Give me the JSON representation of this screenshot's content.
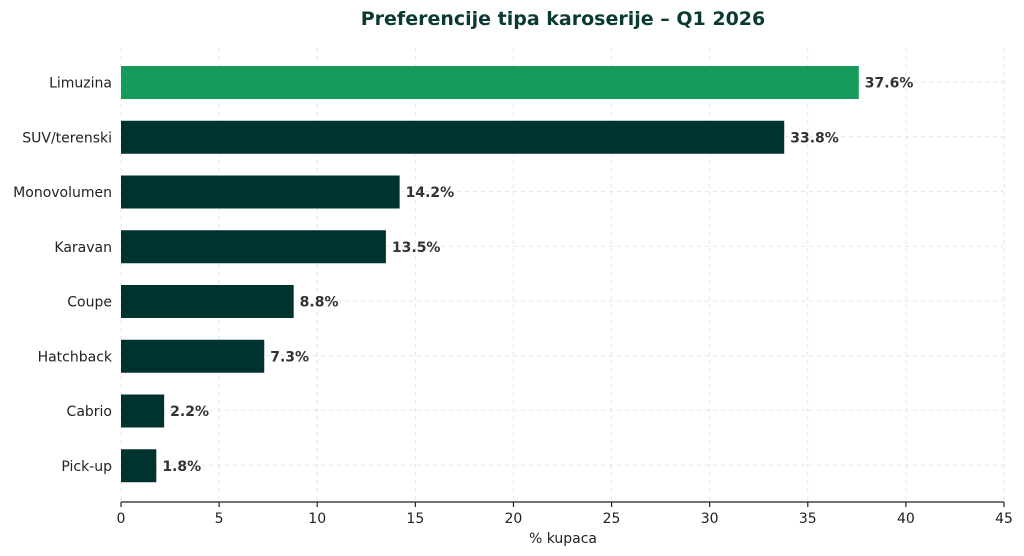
{
  "chart_data": {
    "type": "bar",
    "orientation": "horizontal",
    "title": "Preferencije tipa karoserije – Q1 2026",
    "xlabel": "% kupaca",
    "ylabel": "",
    "xlim": [
      0,
      45
    ],
    "xticks": [
      0,
      5,
      10,
      15,
      20,
      25,
      30,
      35,
      40,
      45
    ],
    "grid": true,
    "categories": [
      "Limuzina",
      "SUV/terenski",
      "Monovolumen",
      "Karavan",
      "Coupe",
      "Hatchback",
      "Cabrio",
      "Pick-up"
    ],
    "values": [
      37.6,
      33.8,
      14.2,
      13.5,
      8.8,
      7.3,
      2.2,
      1.8
    ],
    "value_labels": [
      "37.6%",
      "33.8%",
      "14.2%",
      "13.5%",
      "8.8%",
      "7.3%",
      "2.2%",
      "1.8%"
    ],
    "highlight_index": 0
  },
  "colors": {
    "highlight_bar": "#159a5b",
    "bar": "#003330",
    "title": "#0b3a33"
  }
}
